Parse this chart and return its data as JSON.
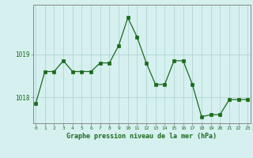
{
  "x": [
    0,
    1,
    2,
    3,
    4,
    5,
    6,
    7,
    8,
    9,
    10,
    11,
    12,
    13,
    14,
    15,
    16,
    17,
    18,
    19,
    20,
    21,
    22,
    23
  ],
  "y": [
    1017.85,
    1018.6,
    1018.6,
    1018.85,
    1018.6,
    1018.6,
    1018.6,
    1018.8,
    1018.8,
    1019.2,
    1019.85,
    1019.4,
    1018.8,
    1018.3,
    1018.3,
    1018.85,
    1018.85,
    1018.3,
    1017.55,
    1017.6,
    1017.6,
    1017.95,
    1017.95,
    1017.95
  ],
  "ylim": [
    1017.4,
    1020.15
  ],
  "yticks": [
    1018,
    1019
  ],
  "xticks": [
    0,
    1,
    2,
    3,
    4,
    5,
    6,
    7,
    8,
    9,
    10,
    11,
    12,
    13,
    14,
    15,
    16,
    17,
    18,
    19,
    20,
    21,
    22,
    23
  ],
  "line_color": "#1a6b1a",
  "marker_color": "#1a6b1a",
  "bg_color": "#d6f0f0",
  "grid_color": "#b0d4d4",
  "xlabel": "Graphe pression niveau de la mer (hPa)",
  "xlabel_color": "#1a6b1a",
  "tick_color": "#1a6b1a",
  "spine_color": "#888888"
}
